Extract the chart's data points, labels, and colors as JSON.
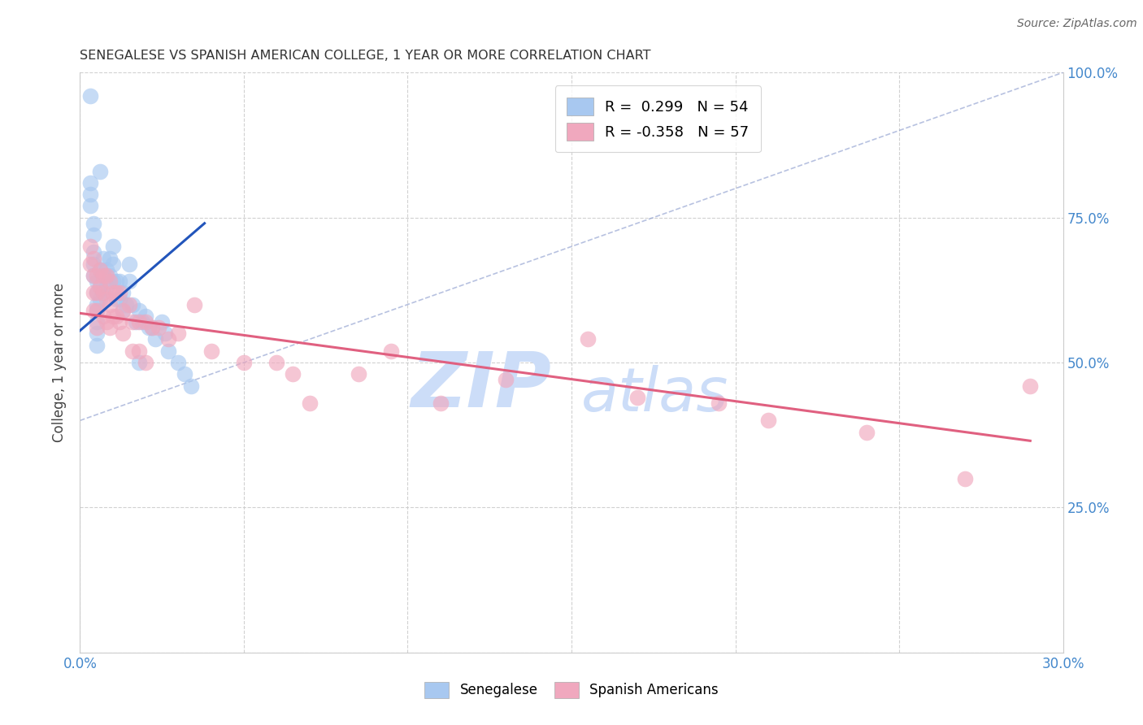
{
  "title": "SENEGALESE VS SPANISH AMERICAN COLLEGE, 1 YEAR OR MORE CORRELATION CHART",
  "source": "Source: ZipAtlas.com",
  "ylabel": "College, 1 year or more",
  "xmin": 0.0,
  "xmax": 0.3,
  "ymin": 0.0,
  "ymax": 1.0,
  "xticks": [
    0.0,
    0.05,
    0.1,
    0.15,
    0.2,
    0.25,
    0.3
  ],
  "yticks": [
    0.0,
    0.25,
    0.5,
    0.75,
    1.0
  ],
  "right_ytick_labels": [
    "",
    "25.0%",
    "50.0%",
    "75.0%",
    "100.0%"
  ],
  "xtick_labels": [
    "0.0%",
    "",
    "",
    "",
    "",
    "",
    "30.0%"
  ],
  "legend_blue_r": "R =  0.299",
  "legend_blue_n": "N = 54",
  "legend_pink_r": "R = -0.358",
  "legend_pink_n": "N = 57",
  "legend_label_blue": "Senegalese",
  "legend_label_pink": "Spanish Americans",
  "blue_color": "#a8c8f0",
  "pink_color": "#f0a8be",
  "blue_line_color": "#2255bb",
  "pink_line_color": "#e06080",
  "ref_line_color": "#8899cc",
  "watermark_zip": "ZIP",
  "watermark_atlas": "atlas",
  "watermark_color": "#ccddf8",
  "background_color": "#ffffff",
  "grid_color": "#cccccc",
  "tick_color": "#4488cc",
  "blue_scatter_x": [
    0.003,
    0.006,
    0.003,
    0.003,
    0.003,
    0.004,
    0.004,
    0.004,
    0.004,
    0.004,
    0.005,
    0.005,
    0.005,
    0.005,
    0.005,
    0.005,
    0.005,
    0.006,
    0.006,
    0.006,
    0.007,
    0.007,
    0.007,
    0.008,
    0.008,
    0.009,
    0.009,
    0.01,
    0.01,
    0.01,
    0.011,
    0.011,
    0.012,
    0.012,
    0.013,
    0.013,
    0.014,
    0.015,
    0.015,
    0.016,
    0.017,
    0.018,
    0.019,
    0.02,
    0.021,
    0.022,
    0.023,
    0.025,
    0.026,
    0.027,
    0.03,
    0.032,
    0.034,
    0.018
  ],
  "blue_scatter_y": [
    0.96,
    0.83,
    0.81,
    0.79,
    0.77,
    0.74,
    0.72,
    0.69,
    0.67,
    0.65,
    0.64,
    0.62,
    0.6,
    0.59,
    0.57,
    0.55,
    0.53,
    0.66,
    0.63,
    0.61,
    0.68,
    0.65,
    0.62,
    0.66,
    0.63,
    0.68,
    0.65,
    0.7,
    0.67,
    0.64,
    0.64,
    0.61,
    0.64,
    0.61,
    0.62,
    0.59,
    0.6,
    0.67,
    0.64,
    0.6,
    0.57,
    0.59,
    0.57,
    0.58,
    0.56,
    0.56,
    0.54,
    0.57,
    0.55,
    0.52,
    0.5,
    0.48,
    0.46,
    0.5
  ],
  "pink_scatter_x": [
    0.003,
    0.003,
    0.004,
    0.004,
    0.004,
    0.004,
    0.005,
    0.005,
    0.005,
    0.005,
    0.006,
    0.006,
    0.007,
    0.007,
    0.007,
    0.008,
    0.008,
    0.008,
    0.009,
    0.009,
    0.009,
    0.01,
    0.01,
    0.011,
    0.011,
    0.012,
    0.012,
    0.013,
    0.013,
    0.015,
    0.016,
    0.016,
    0.018,
    0.018,
    0.02,
    0.02,
    0.022,
    0.024,
    0.027,
    0.03,
    0.035,
    0.04,
    0.05,
    0.06,
    0.065,
    0.07,
    0.085,
    0.095,
    0.11,
    0.13,
    0.155,
    0.17,
    0.195,
    0.21,
    0.24,
    0.27,
    0.29
  ],
  "pink_scatter_y": [
    0.7,
    0.67,
    0.68,
    0.65,
    0.62,
    0.59,
    0.65,
    0.62,
    0.59,
    0.56,
    0.66,
    0.63,
    0.65,
    0.62,
    0.58,
    0.65,
    0.61,
    0.57,
    0.64,
    0.6,
    0.56,
    0.62,
    0.58,
    0.62,
    0.58,
    0.62,
    0.57,
    0.59,
    0.55,
    0.6,
    0.57,
    0.52,
    0.57,
    0.52,
    0.57,
    0.5,
    0.56,
    0.56,
    0.54,
    0.55,
    0.6,
    0.52,
    0.5,
    0.5,
    0.48,
    0.43,
    0.48,
    0.52,
    0.43,
    0.47,
    0.54,
    0.44,
    0.43,
    0.4,
    0.38,
    0.3,
    0.46
  ],
  "blue_trend_x": [
    0.0,
    0.038
  ],
  "blue_trend_y": [
    0.555,
    0.74
  ],
  "pink_trend_x": [
    0.0,
    0.29
  ],
  "pink_trend_y": [
    0.585,
    0.365
  ],
  "ref_line_x": [
    0.0,
    0.3
  ],
  "ref_line_y": [
    0.4,
    1.0
  ]
}
